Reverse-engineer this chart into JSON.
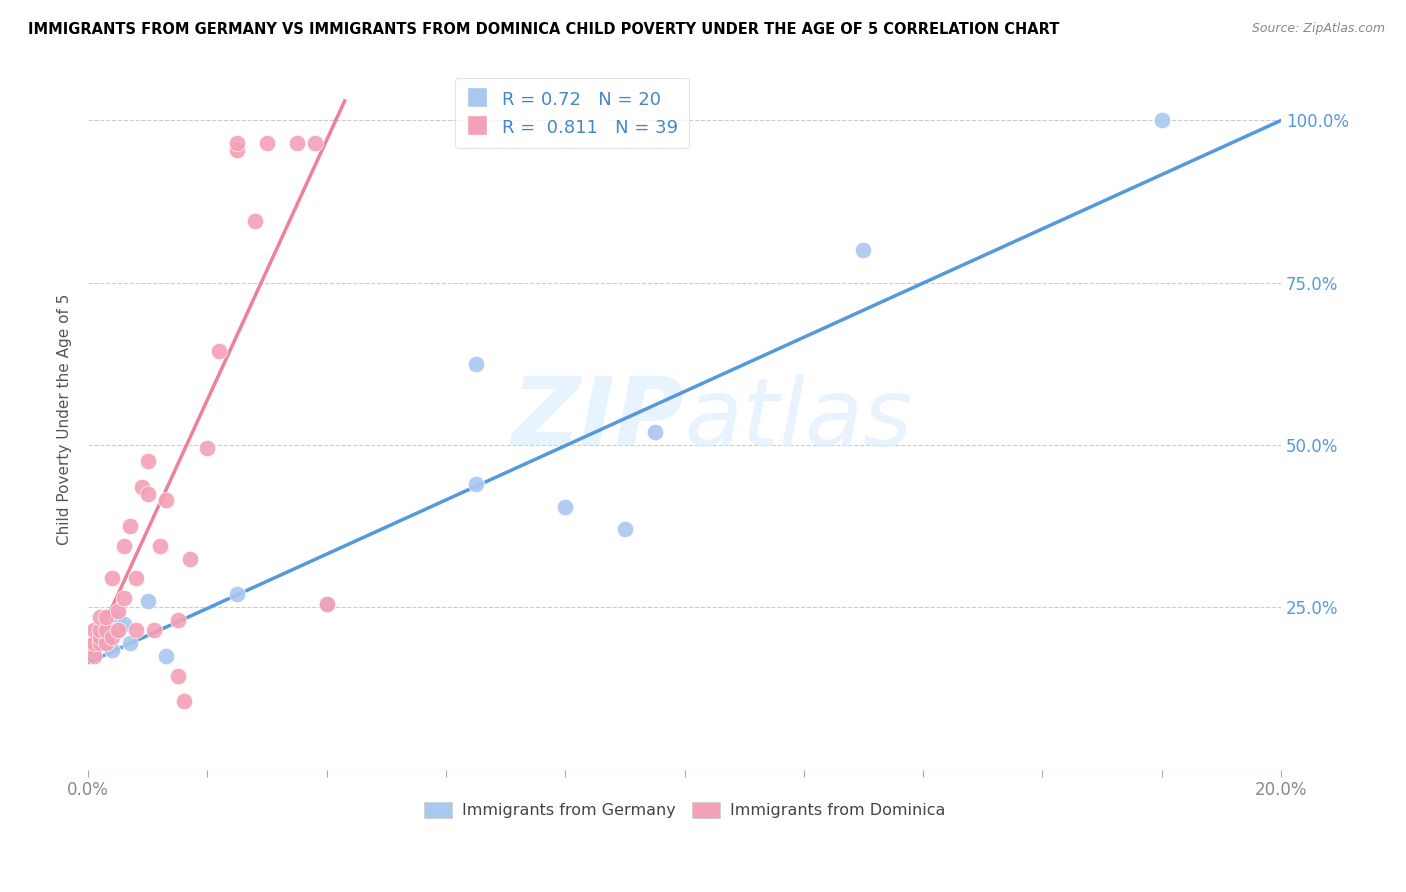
{
  "title": "IMMIGRANTS FROM GERMANY VS IMMIGRANTS FROM DOMINICA CHILD POVERTY UNDER THE AGE OF 5 CORRELATION CHART",
  "source": "Source: ZipAtlas.com",
  "ylabel": "Child Poverty Under the Age of 5",
  "xlim": [
    0.0,
    0.2
  ],
  "ylim": [
    0.0,
    1.08
  ],
  "ytick_positions": [
    0.0,
    0.25,
    0.5,
    0.75,
    1.0
  ],
  "ytick_labels": [
    "",
    "25.0%",
    "50.0%",
    "75.0%",
    "100.0%"
  ],
  "xtick_positions": [
    0.0,
    0.02,
    0.04,
    0.06,
    0.08,
    0.1,
    0.12,
    0.14,
    0.16,
    0.18,
    0.2
  ],
  "xtick_labels": [
    "0.0%",
    "",
    "",
    "",
    "",
    "",
    "",
    "",
    "",
    "",
    "20.0%"
  ],
  "germany_R": 0.72,
  "germany_N": 20,
  "dominica_R": 0.811,
  "dominica_N": 39,
  "germany_color": "#a8c8f0",
  "dominica_color": "#f4a0b5",
  "germany_line_color": "#5599dd",
  "dominica_line_color": "#f08098",
  "watermark_color": "#ddeeff",
  "germany_x": [
    0.001,
    0.002,
    0.003,
    0.003,
    0.004,
    0.005,
    0.005,
    0.006,
    0.007,
    0.01,
    0.013,
    0.025,
    0.04,
    0.065,
    0.065,
    0.08,
    0.09,
    0.095,
    0.13,
    0.18
  ],
  "germany_y": [
    0.185,
    0.205,
    0.215,
    0.195,
    0.185,
    0.235,
    0.215,
    0.225,
    0.195,
    0.26,
    0.175,
    0.27,
    0.255,
    0.625,
    0.44,
    0.405,
    0.37,
    0.52,
    0.8,
    1.0
  ],
  "dominica_x": [
    0.0005,
    0.001,
    0.001,
    0.001,
    0.002,
    0.002,
    0.002,
    0.002,
    0.003,
    0.003,
    0.003,
    0.004,
    0.004,
    0.005,
    0.005,
    0.006,
    0.006,
    0.007,
    0.008,
    0.008,
    0.009,
    0.01,
    0.01,
    0.011,
    0.012,
    0.013,
    0.015,
    0.015,
    0.016,
    0.017,
    0.02,
    0.022,
    0.025,
    0.025,
    0.028,
    0.03,
    0.035,
    0.038,
    0.04
  ],
  "dominica_y": [
    0.19,
    0.175,
    0.195,
    0.215,
    0.195,
    0.205,
    0.215,
    0.235,
    0.195,
    0.215,
    0.235,
    0.205,
    0.295,
    0.215,
    0.245,
    0.265,
    0.345,
    0.375,
    0.215,
    0.295,
    0.435,
    0.425,
    0.475,
    0.215,
    0.345,
    0.415,
    0.23,
    0.145,
    0.105,
    0.325,
    0.495,
    0.645,
    0.955,
    0.965,
    0.845,
    0.965,
    0.965,
    0.965,
    0.255
  ],
  "germany_line_x0": 0.0,
  "germany_line_y0": 0.165,
  "germany_line_x1": 0.2,
  "germany_line_y1": 1.0,
  "dominica_line_x0": 0.0,
  "dominica_line_y0": 0.17,
  "dominica_line_x1": 0.043,
  "dominica_line_y1": 1.03
}
